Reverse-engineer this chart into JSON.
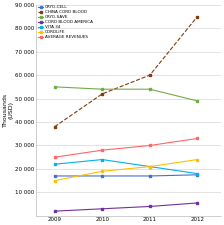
{
  "ylabel": "Thousands\n(USD)",
  "years": [
    2009,
    2010,
    2011,
    2012
  ],
  "series": {
    "CRYO-CELL": {
      "values": [
        17000,
        17000,
        17000,
        17500
      ],
      "color": "#4472C4",
      "marker": "s",
      "linestyle": "-",
      "linewidth": 0.8
    },
    "CHINA CORD BLOOD": {
      "values": [
        38000,
        52000,
        60000,
        85000
      ],
      "color": "#843C0C",
      "marker": "s",
      "linestyle": "--",
      "linewidth": 0.8
    },
    "CRYO-SAVE": {
      "values": [
        55000,
        54000,
        54000,
        49000
      ],
      "color": "#70AD47",
      "marker": "s",
      "linestyle": "-",
      "linewidth": 0.8
    },
    "CORD BLOOD AMERICA": {
      "values": [
        2000,
        3000,
        4000,
        5500
      ],
      "color": "#7030A0",
      "marker": "s",
      "linestyle": "-",
      "linewidth": 0.8
    },
    "VITA 34": {
      "values": [
        22000,
        24000,
        21000,
        18000
      ],
      "color": "#00B0F0",
      "marker": "s",
      "linestyle": "-",
      "linewidth": 0.8
    },
    "CORDLIFE": {
      "values": [
        15000,
        19000,
        21000,
        24000
      ],
      "color": "#FFC000",
      "marker": "s",
      "linestyle": "-",
      "linewidth": 0.8
    },
    "AVERAGE REVENUES": {
      "values": [
        25000,
        28000,
        30000,
        33000
      ],
      "color": "#FF6666",
      "marker": "s",
      "linestyle": "-",
      "linewidth": 0.8
    }
  },
  "ylim": [
    0,
    90000
  ],
  "ytick_values": [
    0,
    10000,
    20000,
    30000,
    40000,
    50000,
    60000,
    70000,
    80000,
    90000
  ],
  "ytick_labels": [
    "",
    "10 000",
    "20 000",
    "30 000",
    "40 000",
    "50 000",
    "60 000",
    "70 000",
    "80 000",
    "90 000"
  ],
  "background_color": "#FFFFFF",
  "grid_color": "#CCCCCC"
}
